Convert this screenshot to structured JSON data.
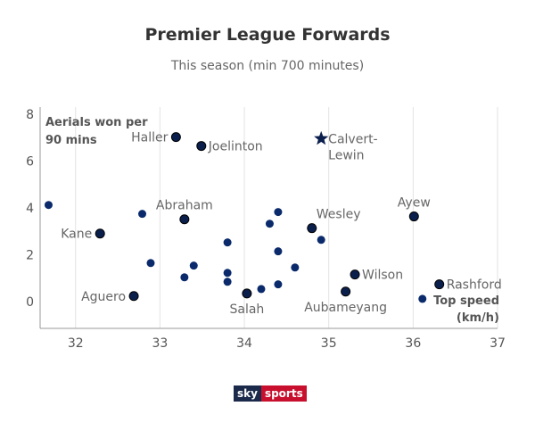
{
  "chart_data": {
    "type": "scatter",
    "title": "Premier League Forwards",
    "subtitle": "This season (min 700 minutes)",
    "xlabel": [
      "Top speed",
      "(km/h)"
    ],
    "ylabel": [
      "Aerials won per",
      "90 mins"
    ],
    "xlim": [
      31.58,
      37
    ],
    "ylim": [
      -1.15,
      8.3
    ],
    "xticks": [
      32,
      33,
      34,
      35,
      36,
      37
    ],
    "yticks": [
      0,
      2,
      4,
      6,
      8
    ],
    "grid": "vertical",
    "colors": {
      "point": "#0a2a6b",
      "labelled": "#0b1f4d",
      "grid": "#e3e3e3",
      "axis": "#999999"
    },
    "points": [
      {
        "x": 31.68,
        "y": 4.12
      },
      {
        "x": 32.29,
        "y": 2.9,
        "name": "Kane",
        "side": "left"
      },
      {
        "x": 32.79,
        "y": 3.74
      },
      {
        "x": 32.69,
        "y": 0.23,
        "name": "Aguero",
        "side": "left"
      },
      {
        "x": 32.89,
        "y": 1.64
      },
      {
        "x": 33.19,
        "y": 7.02,
        "name": "Haller",
        "side": "left"
      },
      {
        "x": 33.29,
        "y": 3.51,
        "name": "Abraham",
        "side": "above"
      },
      {
        "x": 33.29,
        "y": 1.03
      },
      {
        "x": 33.4,
        "y": 1.53
      },
      {
        "x": 33.49,
        "y": 6.64,
        "name": "Joelinton",
        "side": "right"
      },
      {
        "x": 33.8,
        "y": 2.52
      },
      {
        "x": 33.8,
        "y": 1.22
      },
      {
        "x": 33.8,
        "y": 0.84
      },
      {
        "x": 34.03,
        "y": 0.34,
        "name": "Salah",
        "side": "below"
      },
      {
        "x": 34.2,
        "y": 0.53
      },
      {
        "x": 34.3,
        "y": 3.32
      },
      {
        "x": 34.4,
        "y": 3.82
      },
      {
        "x": 34.4,
        "y": 2.14
      },
      {
        "x": 34.4,
        "y": 0.73
      },
      {
        "x": 34.6,
        "y": 1.45
      },
      {
        "x": 34.8,
        "y": 3.13,
        "name": "Wesley",
        "side": "aboveright"
      },
      {
        "x": 34.91,
        "y": 2.63
      },
      {
        "x": 34.91,
        "y": 6.95,
        "name": "Calvert-Lewin",
        "nameLines": [
          "Calvert-",
          "Lewin"
        ],
        "side": "right",
        "marker": "star"
      },
      {
        "x": 35.2,
        "y": 0.42,
        "name": "Aubameyang",
        "side": "below"
      },
      {
        "x": 35.31,
        "y": 1.15,
        "name": "Wilson",
        "side": "right"
      },
      {
        "x": 36.01,
        "y": 3.63,
        "name": "Ayew",
        "side": "above"
      },
      {
        "x": 36.11,
        "y": 0.11
      },
      {
        "x": 36.31,
        "y": 0.73,
        "name": "Rashford",
        "side": "right"
      }
    ]
  },
  "branding": {
    "sky": "sky",
    "sports": "sports"
  }
}
